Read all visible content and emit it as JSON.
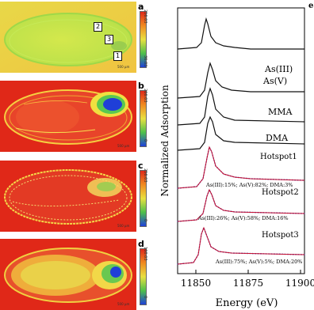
{
  "maps": {
    "panels": [
      {
        "letter": "a",
        "scale_top": "256.03",
        "scale_bottom": "36.03",
        "scalebar": "500 µm"
      },
      {
        "letter": "b",
        "scale_top": "266.03",
        "scale_bottom": "0",
        "scalebar": "500 µm"
      },
      {
        "letter": "c",
        "scale_top": "256.03",
        "scale_bottom": "0",
        "scalebar": "500 µm"
      },
      {
        "letter": "d",
        "scale_top": "160.03",
        "scale_bottom": "0",
        "scalebar": "500 µm"
      }
    ],
    "roi_labels": [
      "2",
      "3",
      "1"
    ]
  },
  "xanes": {
    "panel_letter": "e",
    "ylabel": "Normalized Adsorption",
    "xlabel": "Energy (eV)",
    "ticks": [
      "11850",
      "11875",
      "11900"
    ],
    "spectra": [
      {
        "name": "As(III)"
      },
      {
        "name": "As(V)"
      },
      {
        "name": "MMA"
      },
      {
        "name": "DMA"
      },
      {
        "name": "Hotspot1",
        "composition": "As(III):15%; As(V):82%; DMA:3%"
      },
      {
        "name": "Hotspot2",
        "composition": "As(III):26%; As(V):58%; DMA:16%"
      },
      {
        "name": "Hotspot3",
        "composition": "As(III):75%; As(V):5%; DMA:20%"
      }
    ]
  },
  "colors": {
    "map_red": "#e02818",
    "map_yellow": "#e8e040",
    "map_green": "#9ad24a",
    "map_blue": "#1f3fd8",
    "fit_red": "#c8102e",
    "data_blue": "#2b2bb0"
  }
}
